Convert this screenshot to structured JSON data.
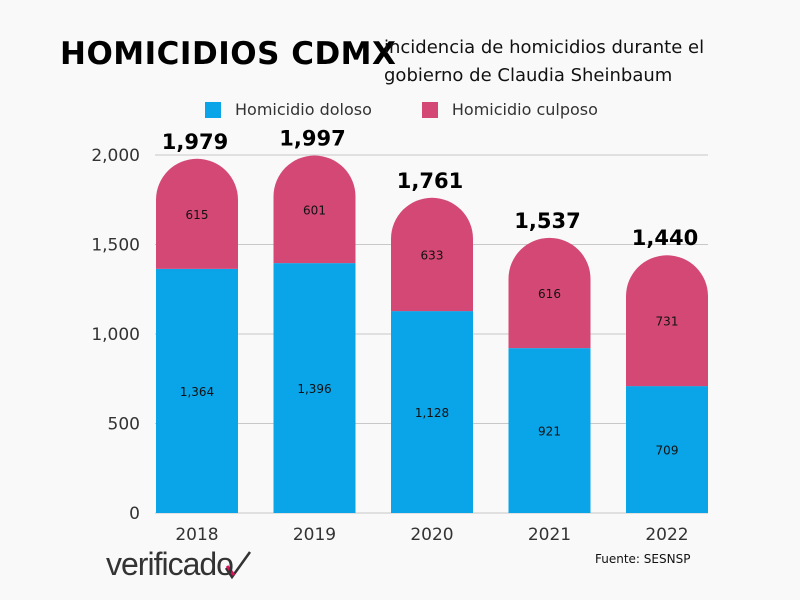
{
  "header": {
    "title": "HOMICIDIOS CDMX",
    "subtitle": "incidencia de homicidios durante el gobierno de Claudia Sheinbaum"
  },
  "footer": {
    "logo": "verificado",
    "source": "Fuente: SESNSP"
  },
  "chart_data": {
    "type": "bar",
    "stacked": true,
    "categories": [
      "2018",
      "2019",
      "2020",
      "2021",
      "2022"
    ],
    "series": [
      {
        "name": "Homicidio doloso",
        "color": "#0aa5e8",
        "values": [
          1364,
          1396,
          1128,
          921,
          709
        ],
        "labels": [
          "1,364",
          "1,396",
          "1,128",
          "921",
          "709"
        ]
      },
      {
        "name": "Homicidio culposo",
        "color": "#d44876",
        "values": [
          615,
          601,
          633,
          616,
          731
        ],
        "labels": [
          "615",
          "601",
          "633",
          "616",
          "731"
        ]
      }
    ],
    "totals": [
      "1,979",
      "1,997",
      "1,761",
      "1,537",
      "1,440"
    ],
    "ylim": [
      0,
      2000
    ],
    "yticks": [
      0,
      500,
      1000,
      1500,
      2000
    ],
    "ytick_labels": [
      "0",
      "500",
      "1,000",
      "1,500",
      "2,000"
    ],
    "grid": true,
    "legend": "top"
  }
}
